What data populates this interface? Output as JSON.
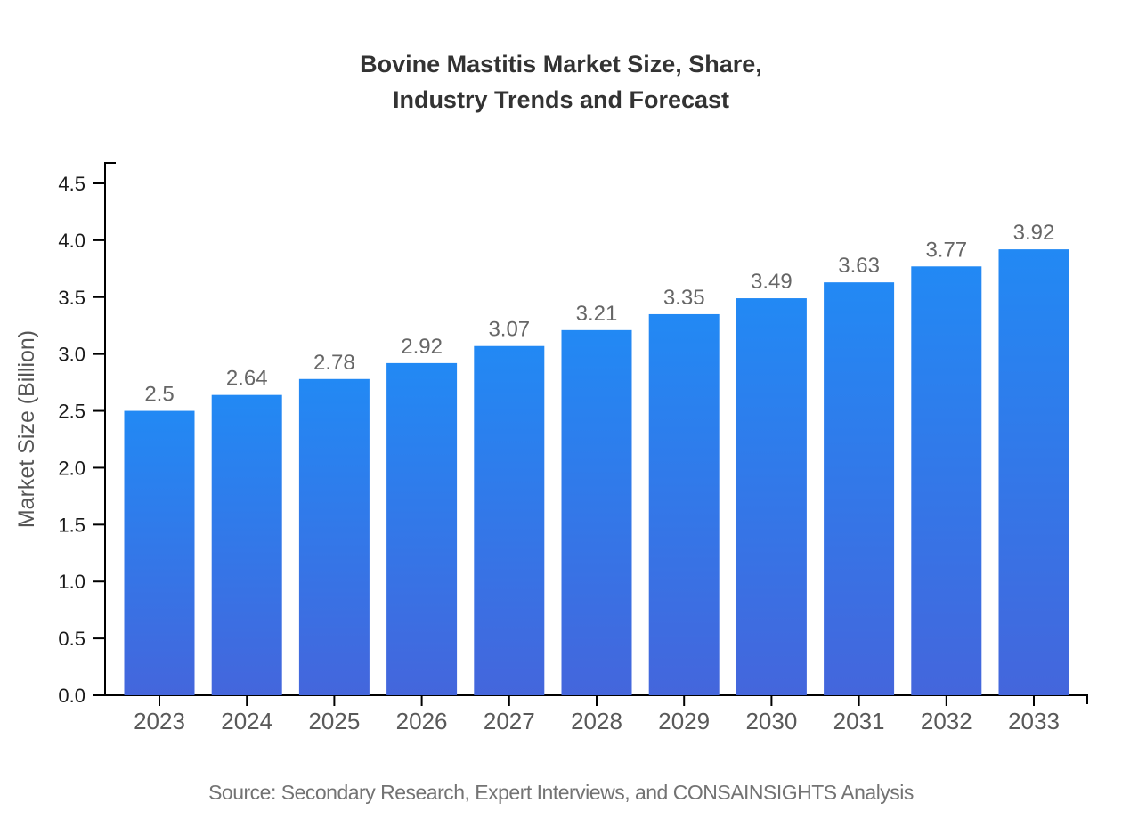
{
  "title": {
    "line1": "Bovine Mastitis Market Size, Share,",
    "line2": "Industry Trends and Forecast"
  },
  "source": "Source: Secondary Research, Expert Interviews, and CONSAINSIGHTS Analysis",
  "colors": {
    "background": "#FFFFFF",
    "bar_top": "#2289F4",
    "bar_bottom": "#4466DC",
    "axis": "#000000",
    "title_text": "#333333",
    "ytick_label": "#1A1A1A",
    "xtick_label": "#595959",
    "value_label": "#666666",
    "ylabel_text": "#555555",
    "source_text": "#737373"
  },
  "chart_data": {
    "type": "bar",
    "title": "Bovine Mastitis Market Size, Share, Industry Trends and Forecast",
    "categories": [
      "2023",
      "2024",
      "2025",
      "2026",
      "2027",
      "2028",
      "2029",
      "2030",
      "2031",
      "2032",
      "2033"
    ],
    "values": [
      2.5,
      2.64,
      2.78,
      2.92,
      3.07,
      3.21,
      3.35,
      3.49,
      3.63,
      3.77,
      3.92
    ],
    "value_labels": [
      "2.5",
      "2.64",
      "2.78",
      "2.92",
      "3.07",
      "3.21",
      "3.35",
      "3.49",
      "3.63",
      "3.77",
      "3.92"
    ],
    "xlabel": "",
    "ylabel": "Market Size (Billion)",
    "ylim": [
      0,
      4.5
    ],
    "yticks": [
      "0.0",
      "0.5",
      "1.0",
      "1.5",
      "2.0",
      "2.5",
      "3.0",
      "3.5",
      "4.0",
      "4.5"
    ],
    "grid": false,
    "legend": "none"
  }
}
